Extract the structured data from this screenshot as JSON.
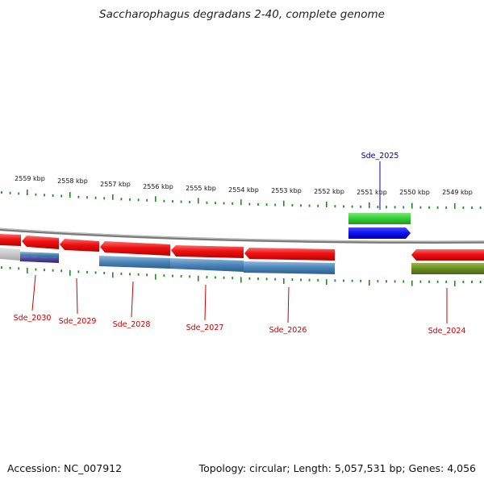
{
  "title": "Saccharophagus degradans 2-40, complete genome",
  "footer": {
    "accession": "Accession: NC_007912",
    "stats": "Topology: circular; Length: 5,057,531 bp; Genes: 4,056"
  },
  "colors": {
    "gene_red": "#ee1111",
    "cds_blue": "#4682b4",
    "rna_green": "#33cc33",
    "rna_blue": "#1010ee",
    "misc_olive": "#6b8e23",
    "misc_purple": "#483d8b",
    "backbone": "#888888",
    "tick_green": "#228b22",
    "label_red": "#cc0000",
    "label_blue": "#0000aa"
  },
  "kbp_labels": [
    "2559 kbp",
    "2558 kbp",
    "2557 kbp",
    "2556 kbp",
    "2555 kbp",
    "2554 kbp",
    "2553 kbp",
    "2552 kbp",
    "2551 kbp",
    "2550 kbp",
    "2549 kbp"
  ],
  "gene_labels": [
    {
      "id": "Sde_2030",
      "color": "red"
    },
    {
      "id": "Sde_2029",
      "color": "red"
    },
    {
      "id": "Sde_2028",
      "color": "red"
    },
    {
      "id": "Sde_2027",
      "color": "red"
    },
    {
      "id": "Sde_2026",
      "color": "red"
    },
    {
      "id": "Sde_2024",
      "color": "red"
    },
    {
      "id": "Sde_2025",
      "color": "blue"
    }
  ]
}
